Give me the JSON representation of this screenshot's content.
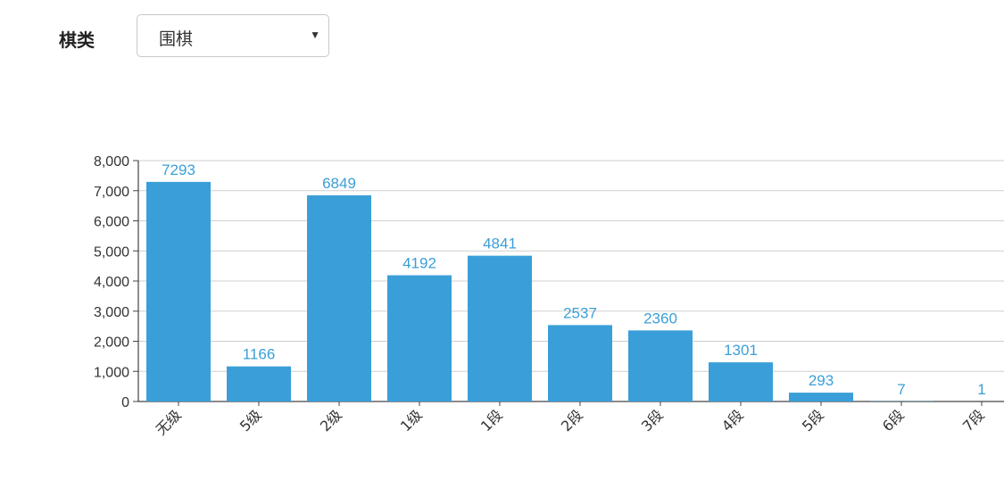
{
  "filter": {
    "label": "棋类",
    "selected": "围棋",
    "arrow_icon": "triangle-down-icon"
  },
  "chart_data": {
    "type": "bar",
    "categories": [
      "无级",
      "5级",
      "2级",
      "1级",
      "1段",
      "2段",
      "3段",
      "4段",
      "5段",
      "6段",
      "7段"
    ],
    "values": [
      7293,
      1166,
      6849,
      4192,
      4841,
      2537,
      2360,
      1301,
      293,
      7,
      1
    ],
    "yticks": [
      "0",
      "1,000",
      "2,000",
      "3,000",
      "4,000",
      "5,000",
      "6,000",
      "7,000",
      "8,000"
    ],
    "ylim": [
      0,
      8000
    ],
    "grid": true,
    "bar_color": "#3a9fd8",
    "label_color": "#3a9fd8"
  }
}
